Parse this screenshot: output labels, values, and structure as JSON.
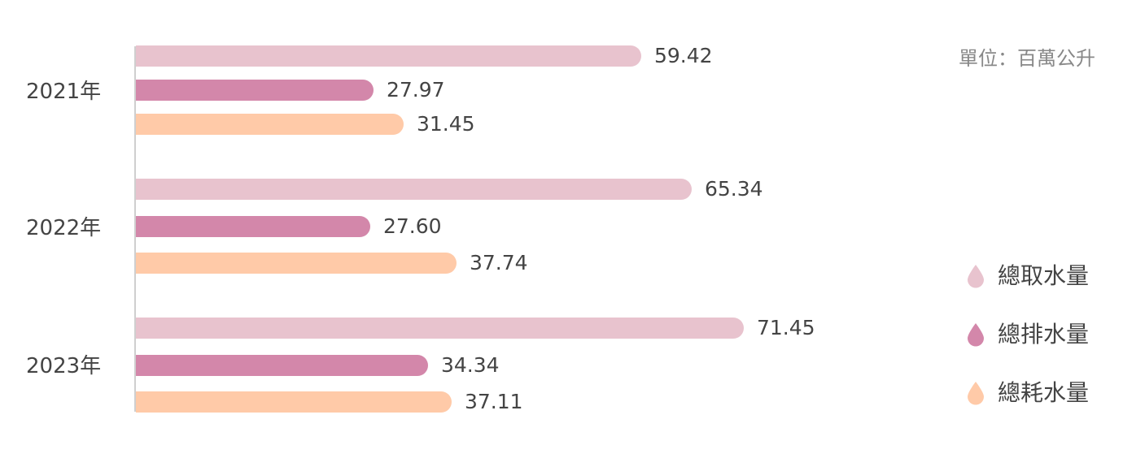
{
  "chart_data": {
    "type": "bar",
    "orientation": "horizontal",
    "unit_label": "單位：百萬公升",
    "categories": [
      "2021年",
      "2022年",
      "2023年"
    ],
    "series": [
      {
        "name": "總取水量",
        "color": "#e8c3ce",
        "values": [
          59.42,
          65.34,
          71.45
        ]
      },
      {
        "name": "總排水量",
        "color": "#d387aa",
        "values": [
          27.97,
          27.6,
          34.34
        ]
      },
      {
        "name": "總耗水量",
        "color": "#ffcaa8",
        "values": [
          31.45,
          37.74,
          37.11
        ]
      }
    ],
    "value_labels": [
      [
        "59.42",
        "27.97",
        "31.45"
      ],
      [
        "65.34",
        "27.60",
        "37.74"
      ],
      [
        "71.45",
        "34.34",
        "37.11"
      ]
    ],
    "legend_position": "right",
    "grid": false
  }
}
